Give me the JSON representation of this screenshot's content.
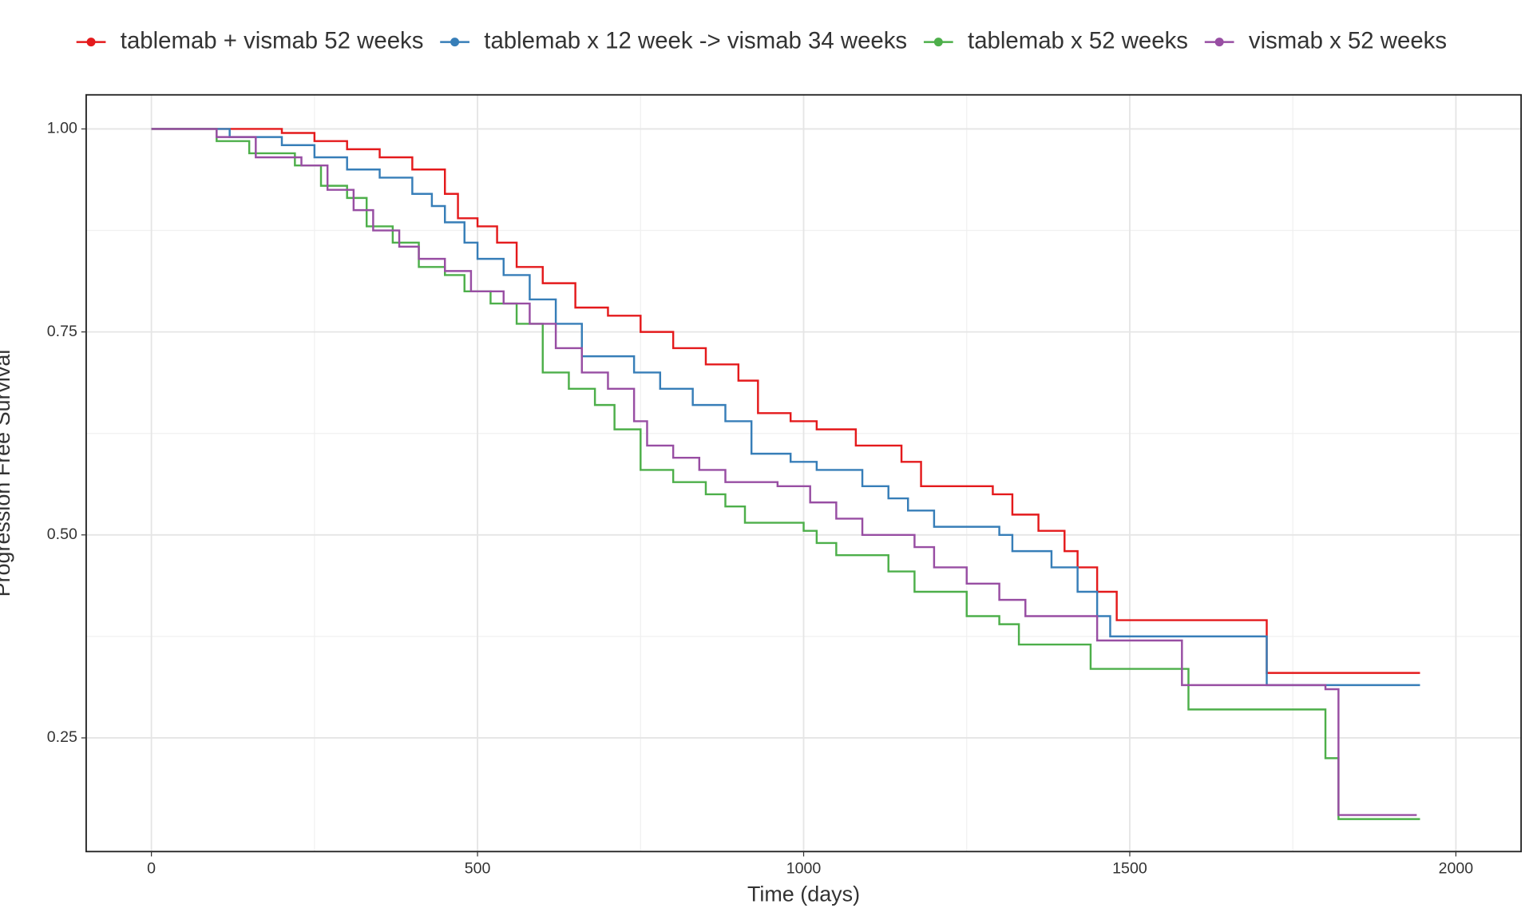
{
  "chart_data": {
    "type": "step",
    "x_label": "Time (days)",
    "y_label": "Progression Free Survival",
    "xlim": [
      -100,
      2100
    ],
    "ylim": [
      0.11,
      1.042
    ],
    "xticks": [
      0,
      500,
      1000,
      1500,
      2000
    ],
    "yticks": [
      {
        "value": 0.25,
        "label": "0.25"
      },
      {
        "value": 0.5,
        "label": "0.50"
      },
      {
        "value": 0.75,
        "label": "0.75"
      },
      {
        "value": 1,
        "label": "1.00"
      }
    ],
    "grid": true,
    "legend": "top",
    "series": [
      {
        "name": "tablemab + vismab 52 weeks",
        "color": "#e41a1c",
        "x": [
          0,
          100,
          200,
          250,
          300,
          350,
          400,
          450,
          470,
          500,
          530,
          560,
          600,
          650,
          700,
          750,
          800,
          850,
          900,
          930,
          980,
          1020,
          1080,
          1150,
          1180,
          1290,
          1320,
          1360,
          1400,
          1420,
          1450,
          1480,
          1710,
          1945
        ],
        "values": [
          1,
          1,
          0.995,
          0.985,
          0.975,
          0.965,
          0.95,
          0.92,
          0.89,
          0.88,
          0.86,
          0.83,
          0.81,
          0.78,
          0.77,
          0.75,
          0.73,
          0.71,
          0.69,
          0.65,
          0.64,
          0.63,
          0.61,
          0.59,
          0.56,
          0.55,
          0.525,
          0.505,
          0.48,
          0.46,
          0.43,
          0.395,
          0.33,
          0.33
        ]
      },
      {
        "name": "tablemab x 12 week -> vismab 34 weeks",
        "color": "#377eb8",
        "x": [
          0,
          120,
          200,
          250,
          300,
          350,
          400,
          430,
          450,
          480,
          500,
          540,
          580,
          620,
          660,
          740,
          780,
          830,
          880,
          920,
          980,
          1020,
          1090,
          1130,
          1160,
          1200,
          1300,
          1320,
          1380,
          1420,
          1450,
          1470,
          1710,
          1945
        ],
        "values": [
          1,
          0.99,
          0.98,
          0.965,
          0.95,
          0.94,
          0.92,
          0.905,
          0.885,
          0.86,
          0.84,
          0.82,
          0.79,
          0.76,
          0.72,
          0.7,
          0.68,
          0.66,
          0.64,
          0.6,
          0.59,
          0.58,
          0.56,
          0.545,
          0.53,
          0.51,
          0.5,
          0.48,
          0.46,
          0.43,
          0.4,
          0.375,
          0.315,
          0.315
        ]
      },
      {
        "name": "tablemab x 52 weeks",
        "color": "#4daf4a",
        "x": [
          0,
          100,
          150,
          220,
          260,
          300,
          330,
          370,
          410,
          450,
          480,
          520,
          560,
          600,
          640,
          680,
          710,
          750,
          800,
          850,
          880,
          910,
          1000,
          1020,
          1050,
          1130,
          1170,
          1250,
          1300,
          1330,
          1440,
          1590,
          1800,
          1820,
          1945
        ],
        "values": [
          1,
          0.985,
          0.97,
          0.955,
          0.93,
          0.915,
          0.88,
          0.86,
          0.83,
          0.82,
          0.8,
          0.785,
          0.76,
          0.7,
          0.68,
          0.66,
          0.63,
          0.58,
          0.565,
          0.55,
          0.535,
          0.515,
          0.505,
          0.49,
          0.475,
          0.455,
          0.43,
          0.4,
          0.39,
          0.365,
          0.335,
          0.285,
          0.225,
          0.15,
          0.15
        ]
      },
      {
        "name": "vismab x 52 weeks",
        "color": "#984ea3",
        "x": [
          0,
          100,
          160,
          230,
          270,
          310,
          340,
          380,
          410,
          450,
          490,
          540,
          580,
          620,
          660,
          700,
          740,
          760,
          800,
          840,
          880,
          960,
          1010,
          1050,
          1090,
          1170,
          1200,
          1250,
          1300,
          1340,
          1450,
          1580,
          1800,
          1820,
          1940
        ],
        "values": [
          1,
          0.99,
          0.965,
          0.955,
          0.925,
          0.9,
          0.875,
          0.855,
          0.84,
          0.825,
          0.8,
          0.785,
          0.76,
          0.73,
          0.7,
          0.68,
          0.64,
          0.61,
          0.595,
          0.58,
          0.565,
          0.56,
          0.54,
          0.52,
          0.5,
          0.485,
          0.46,
          0.44,
          0.42,
          0.4,
          0.37,
          0.315,
          0.31,
          0.155,
          0.155
        ]
      }
    ]
  }
}
